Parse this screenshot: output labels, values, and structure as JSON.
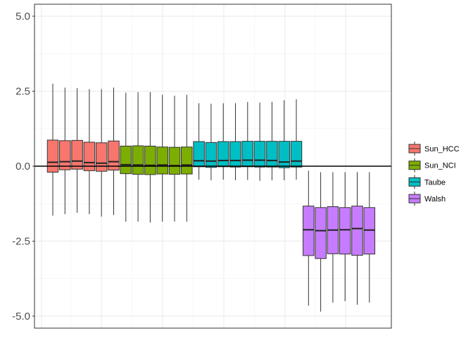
{
  "chart_data": {
    "type": "boxplot",
    "title": "",
    "xlabel": "",
    "ylabel": "",
    "ylim": [
      -5.4,
      5.4
    ],
    "yticks": [
      {
        "value": 5.0,
        "label": "5.0"
      },
      {
        "value": 2.5,
        "label": "2.5"
      },
      {
        "value": 0.0,
        "label": "0.0"
      },
      {
        "value": -2.5,
        "label": "-2.5"
      },
      {
        "value": -5.0,
        "label": "-5.0"
      }
    ],
    "hline": 0,
    "grid": true,
    "legend_position": "right",
    "series": [
      {
        "name": "Sun_HCC",
        "color": "#F8766D",
        "boxes": [
          {
            "min": -1.65,
            "q1": -0.2,
            "median": 0.13,
            "q3": 0.87,
            "max": 2.75
          },
          {
            "min": -1.6,
            "q1": -0.12,
            "median": 0.15,
            "q3": 0.85,
            "max": 2.62
          },
          {
            "min": -1.55,
            "q1": -0.1,
            "median": 0.17,
            "q3": 0.86,
            "max": 2.6
          },
          {
            "min": -1.6,
            "q1": -0.15,
            "median": 0.12,
            "q3": 0.8,
            "max": 2.57
          },
          {
            "min": -1.68,
            "q1": -0.17,
            "median": 0.1,
            "q3": 0.78,
            "max": 2.57
          },
          {
            "min": -1.63,
            "q1": -0.13,
            "median": 0.15,
            "q3": 0.84,
            "max": 2.62
          }
        ]
      },
      {
        "name": "Sun_NCI",
        "color": "#7CAE00",
        "boxes": [
          {
            "min": -1.85,
            "q1": -0.25,
            "median": 0.05,
            "q3": 0.67,
            "max": 2.45
          },
          {
            "min": -1.85,
            "q1": -0.27,
            "median": 0.04,
            "q3": 0.68,
            "max": 2.47
          },
          {
            "min": -1.88,
            "q1": -0.28,
            "median": 0.03,
            "q3": 0.67,
            "max": 2.47
          },
          {
            "min": -1.85,
            "q1": -0.26,
            "median": 0.04,
            "q3": 0.64,
            "max": 2.38
          },
          {
            "min": -1.85,
            "q1": -0.27,
            "median": 0.02,
            "q3": 0.63,
            "max": 2.35
          },
          {
            "min": -1.85,
            "q1": -0.26,
            "median": 0.04,
            "q3": 0.64,
            "max": 2.38
          }
        ]
      },
      {
        "name": "Taube",
        "color": "#00BFC4",
        "boxes": [
          {
            "min": -0.45,
            "q1": -0.02,
            "median": 0.18,
            "q3": 0.82,
            "max": 2.1
          },
          {
            "min": -0.47,
            "q1": -0.04,
            "median": 0.17,
            "q3": 0.79,
            "max": 2.08
          },
          {
            "min": -0.45,
            "q1": -0.02,
            "median": 0.19,
            "q3": 0.82,
            "max": 2.1
          },
          {
            "min": -0.47,
            "q1": -0.03,
            "median": 0.19,
            "q3": 0.82,
            "max": 2.1
          },
          {
            "min": -0.46,
            "q1": -0.02,
            "median": 0.2,
            "q3": 0.83,
            "max": 2.14
          },
          {
            "min": -0.49,
            "q1": -0.03,
            "median": 0.2,
            "q3": 0.83,
            "max": 2.12
          },
          {
            "min": -0.47,
            "q1": -0.03,
            "median": 0.19,
            "q3": 0.83,
            "max": 2.15
          },
          {
            "min": -0.47,
            "q1": -0.05,
            "median": 0.14,
            "q3": 0.83,
            "max": 2.2
          },
          {
            "min": -0.45,
            "q1": -0.03,
            "median": 0.17,
            "q3": 0.83,
            "max": 2.23
          }
        ]
      },
      {
        "name": "Walsh",
        "color": "#C77CFF",
        "boxes": [
          {
            "min": -4.65,
            "q1": -2.98,
            "median": -2.12,
            "q3": -1.33,
            "max": -0.15
          },
          {
            "min": -4.85,
            "q1": -3.08,
            "median": -2.15,
            "q3": -1.38,
            "max": -0.2
          },
          {
            "min": -4.55,
            "q1": -2.92,
            "median": -2.13,
            "q3": -1.35,
            "max": -0.2
          },
          {
            "min": -4.5,
            "q1": -2.93,
            "median": -2.12,
            "q3": -1.38,
            "max": -0.2
          },
          {
            "min": -4.62,
            "q1": -2.97,
            "median": -2.08,
            "q3": -1.33,
            "max": -0.2
          },
          {
            "min": -4.55,
            "q1": -2.93,
            "median": -2.13,
            "q3": -1.38,
            "max": -0.2
          }
        ]
      }
    ]
  }
}
